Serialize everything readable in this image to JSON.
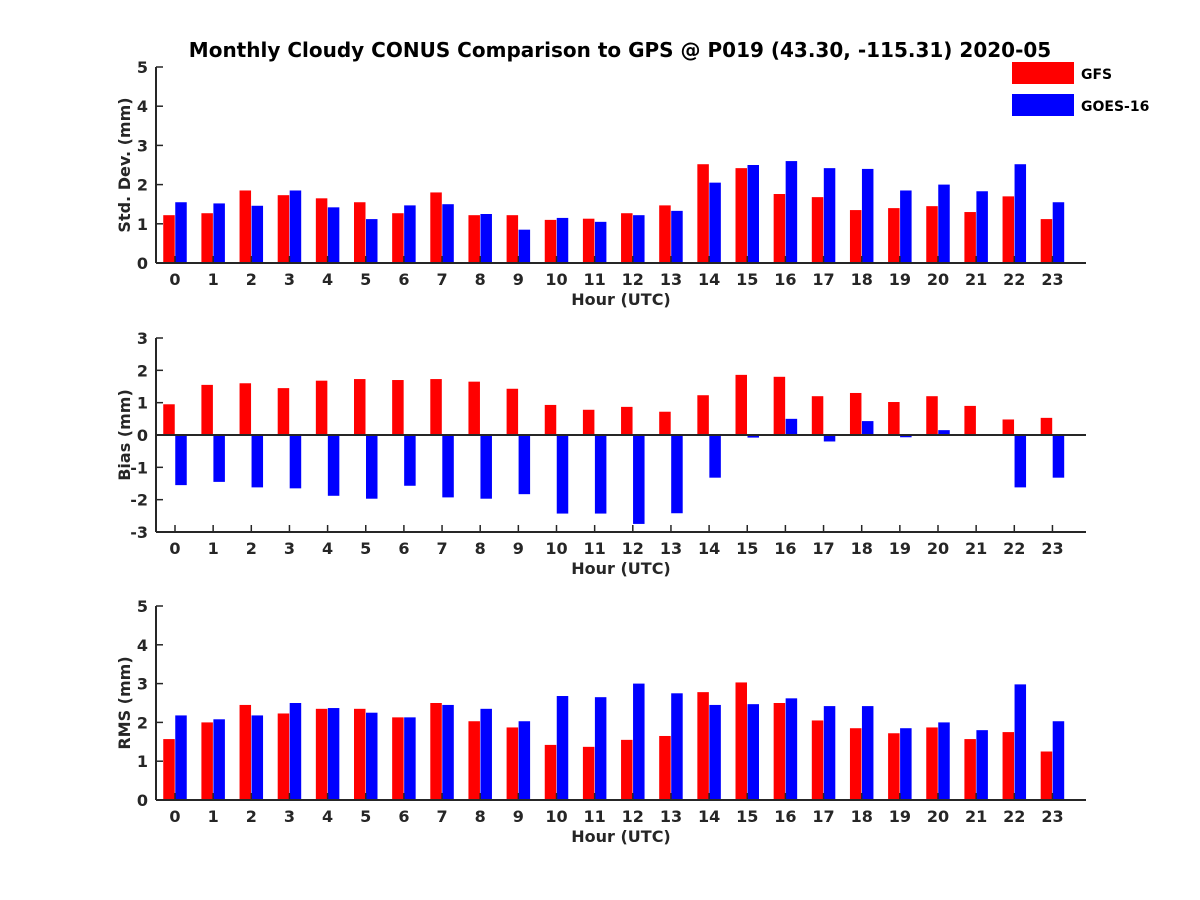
{
  "chart_data": {
    "type": "bar",
    "title": "Monthly Cloudy CONUS Comparison to GPS @ P019 (43.30, -115.31) 2020-05",
    "legend": {
      "placement": "top-right",
      "entries": [
        {
          "name": "GFS",
          "color": "#ff0000"
        },
        {
          "name": "GOES-16",
          "color": "#0000ff"
        }
      ]
    },
    "categories": [
      "0",
      "1",
      "2",
      "3",
      "4",
      "5",
      "6",
      "7",
      "8",
      "9",
      "10",
      "11",
      "12",
      "13",
      "14",
      "15",
      "16",
      "17",
      "18",
      "19",
      "20",
      "21",
      "22",
      "23"
    ],
    "panels": [
      {
        "id": "std",
        "ylabel": "Std. Dev. (mm)",
        "xlabel": "Hour (UTC)",
        "ylim": [
          0,
          5
        ],
        "yticks": [
          "0",
          "1",
          "2",
          "3",
          "4",
          "5"
        ],
        "grid": false,
        "series": [
          {
            "name": "GFS",
            "color": "#ff0000",
            "values": [
              1.22,
              1.27,
              1.85,
              1.73,
              1.65,
              1.55,
              1.27,
              1.8,
              1.22,
              1.22,
              1.1,
              1.13,
              1.27,
              1.47,
              2.52,
              2.42,
              1.76,
              1.68,
              1.35,
              1.4,
              1.45,
              1.3,
              1.7,
              1.12
            ]
          },
          {
            "name": "GOES-16",
            "color": "#0000ff",
            "values": [
              1.55,
              1.52,
              1.46,
              1.85,
              1.42,
              1.12,
              1.47,
              1.5,
              1.25,
              0.85,
              1.15,
              1.05,
              1.22,
              1.33,
              2.05,
              2.5,
              2.6,
              2.42,
              2.4,
              1.85,
              2.0,
              1.83,
              2.52,
              1.55
            ]
          }
        ]
      },
      {
        "id": "bias",
        "ylabel": "Bias (mm)",
        "xlabel": "Hour (UTC)",
        "ylim": [
          -3,
          3
        ],
        "yticks": [
          "-3",
          "-2",
          "-1",
          "0",
          "1",
          "2",
          "3"
        ],
        "grid": false,
        "series": [
          {
            "name": "GFS",
            "color": "#ff0000",
            "values": [
              0.95,
              1.55,
              1.6,
              1.45,
              1.68,
              1.73,
              1.7,
              1.73,
              1.65,
              1.43,
              0.93,
              0.78,
              0.87,
              0.72,
              1.23,
              1.86,
              1.8,
              1.2,
              1.3,
              1.02,
              1.2,
              0.9,
              0.48,
              0.53
            ]
          },
          {
            "name": "GOES-16",
            "color": "#0000ff",
            "values": [
              -1.55,
              -1.45,
              -1.62,
              -1.65,
              -1.88,
              -1.97,
              -1.57,
              -1.93,
              -1.97,
              -1.83,
              -2.43,
              -2.43,
              -2.75,
              -2.42,
              -1.32,
              -0.08,
              0.5,
              -0.2,
              0.43,
              -0.07,
              0.15,
              0.0,
              -1.62,
              -1.32
            ]
          }
        ]
      },
      {
        "id": "rms",
        "ylabel": "RMS (mm)",
        "xlabel": "Hour (UTC)",
        "ylim": [
          0,
          5
        ],
        "yticks": [
          "0",
          "1",
          "2",
          "3",
          "4",
          "5"
        ],
        "grid": false,
        "series": [
          {
            "name": "GFS",
            "color": "#ff0000",
            "values": [
              1.57,
              2.0,
              2.45,
              2.23,
              2.35,
              2.35,
              2.13,
              2.5,
              2.03,
              1.87,
              1.42,
              1.37,
              1.55,
              1.65,
              2.78,
              3.03,
              2.5,
              2.05,
              1.85,
              1.72,
              1.87,
              1.57,
              1.75,
              1.25
            ]
          },
          {
            "name": "GOES-16",
            "color": "#0000ff",
            "values": [
              2.18,
              2.08,
              2.18,
              2.5,
              2.37,
              2.25,
              2.13,
              2.45,
              2.35,
              2.03,
              2.68,
              2.65,
              3.0,
              2.75,
              2.45,
              2.47,
              2.62,
              2.42,
              2.42,
              1.85,
              2.0,
              1.8,
              2.98,
              2.03
            ]
          }
        ]
      }
    ]
  }
}
